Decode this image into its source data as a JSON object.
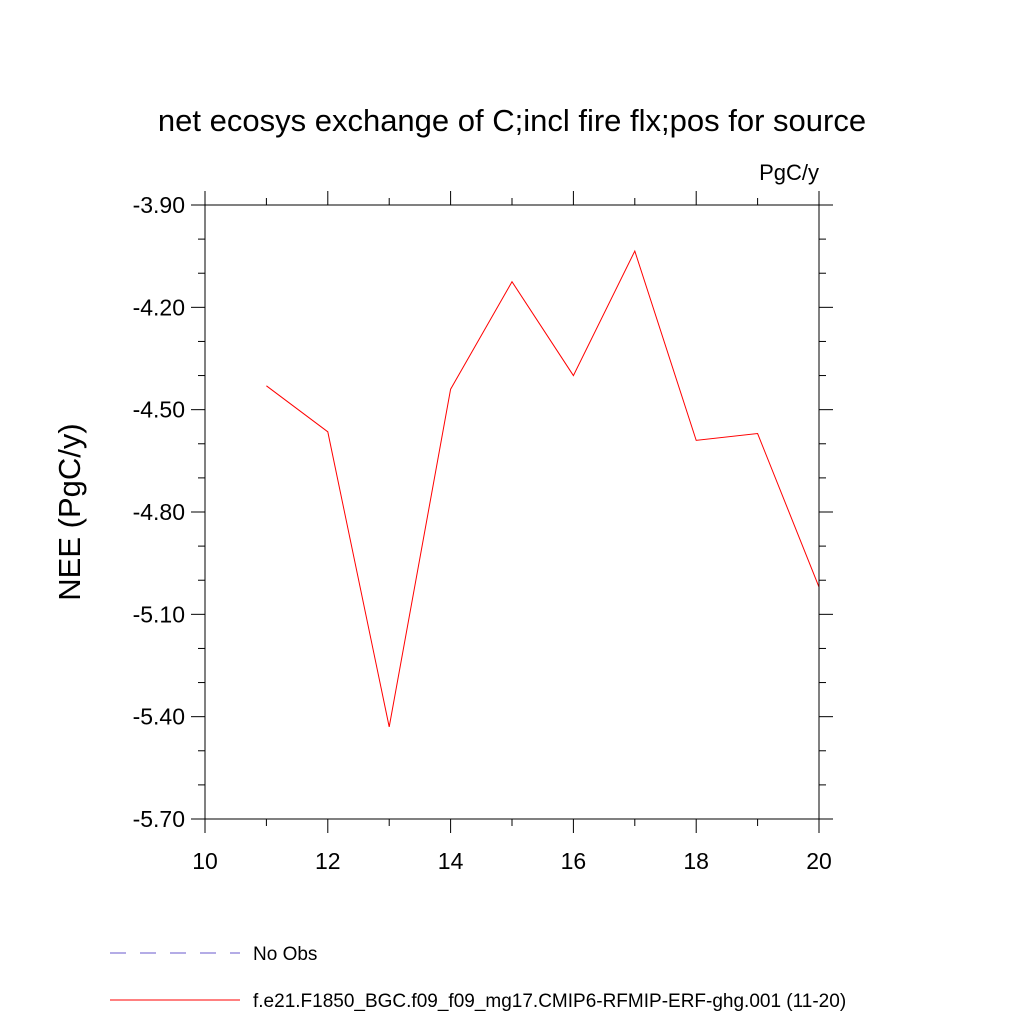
{
  "chart_data": {
    "type": "line",
    "title": "net ecosys exchange of C;incl fire flx;pos for source",
    "units_label": "PgC/y",
    "ylabel": "NEE  (PgC/y)",
    "xlabel": "",
    "xlim": [
      10,
      20
    ],
    "ylim": [
      -5.7,
      -3.9
    ],
    "x_ticks": [
      10,
      12,
      14,
      16,
      18,
      20
    ],
    "x_tick_labels": [
      "10",
      "12",
      "14",
      "16",
      "18",
      "20"
    ],
    "y_ticks": [
      -3.9,
      -4.2,
      -4.5,
      -4.8,
      -5.1,
      -5.4,
      -5.7
    ],
    "y_tick_labels": [
      "-3.90",
      "-4.20",
      "-4.50",
      "-4.80",
      "-5.10",
      "-5.40",
      "-5.70"
    ],
    "grid": false,
    "legend_position": "bottom-left",
    "series": [
      {
        "name": "No Obs",
        "color": "#6a5acd",
        "dashed": true,
        "x": [],
        "y": []
      },
      {
        "name": "f.e21.F1850_BGC.f09_f09_mg17.CMIP6-RFMIP-ERF-ghg.001 (11-20)",
        "color": "#ff0000",
        "dashed": false,
        "x": [
          11,
          12,
          13,
          14,
          15,
          16,
          17,
          18,
          19,
          20
        ],
        "y": [
          -4.43,
          -4.565,
          -5.43,
          -4.44,
          -4.125,
          -4.4,
          -4.035,
          -4.59,
          -4.57,
          -5.02
        ]
      }
    ]
  }
}
